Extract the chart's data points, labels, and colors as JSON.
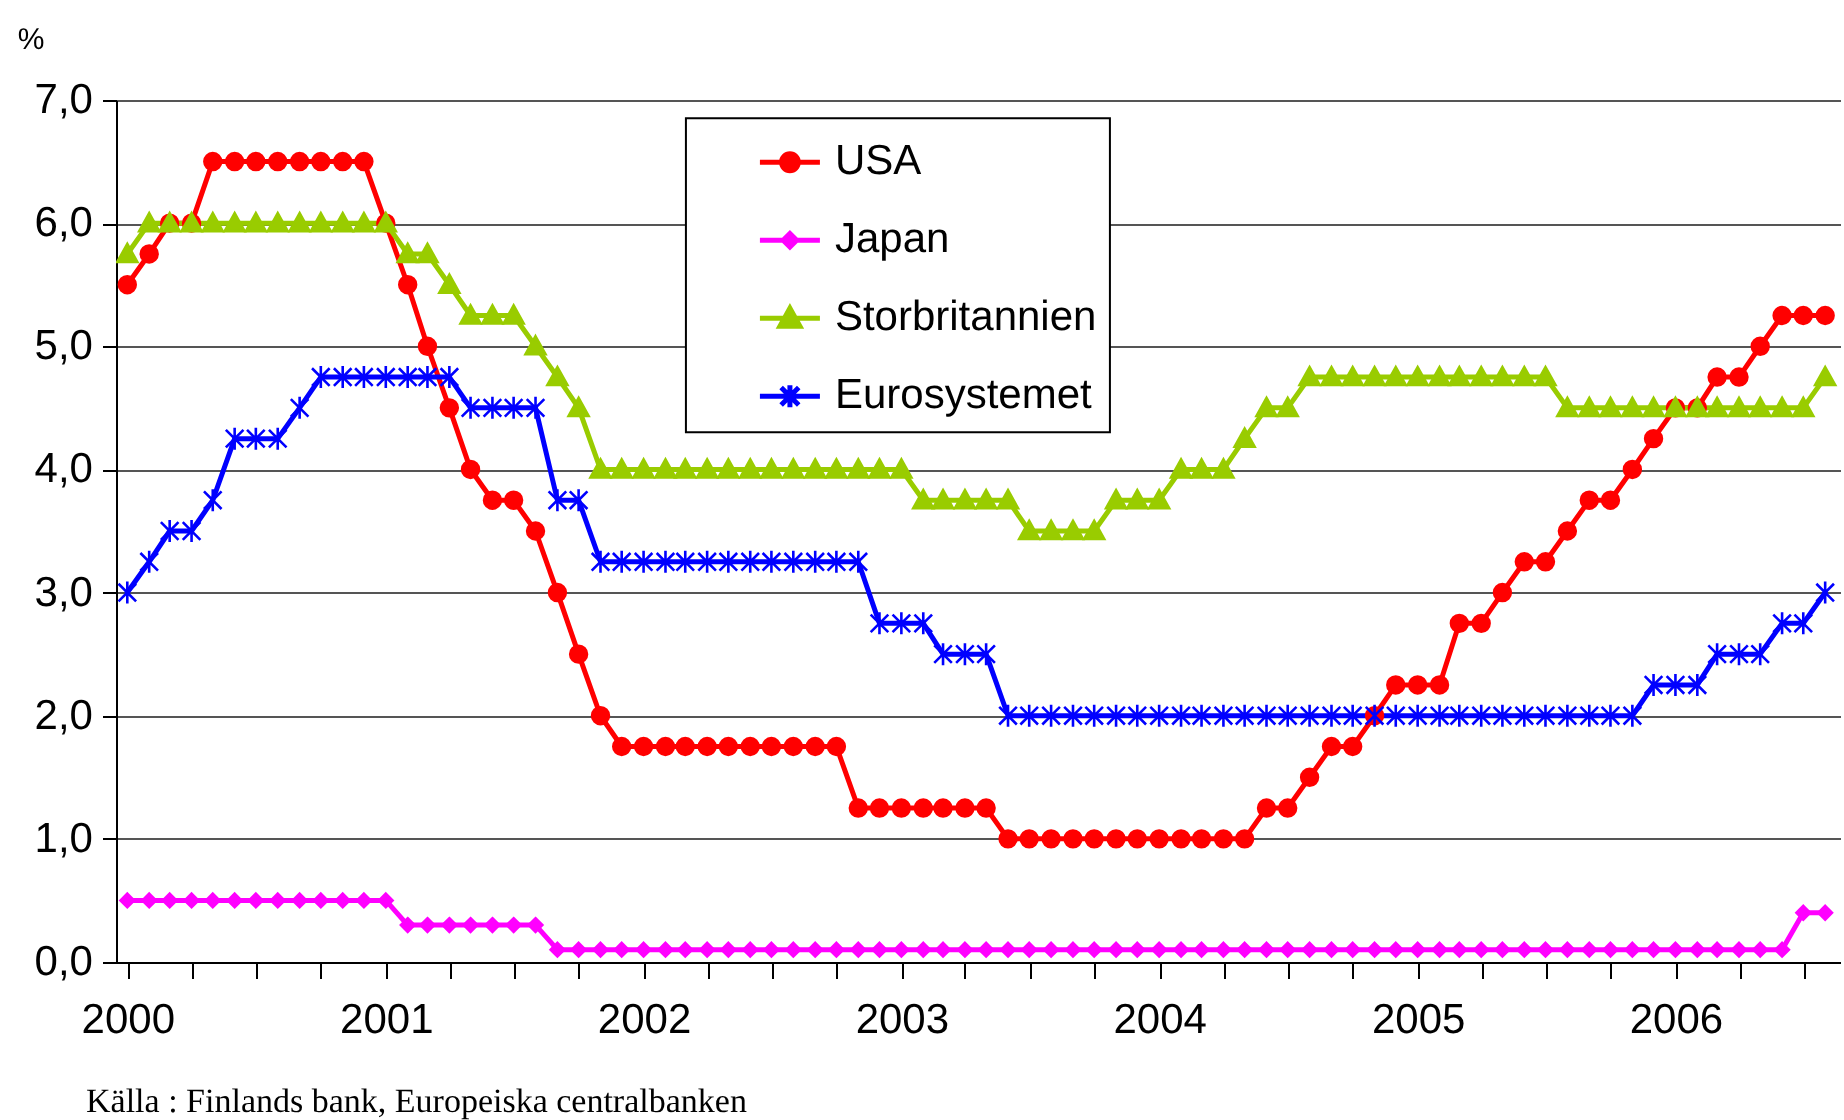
{
  "chart_data": {
    "type": "line",
    "x": [
      "2000-01",
      "2000-02",
      "2000-03",
      "2000-04",
      "2000-05",
      "2000-06",
      "2000-07",
      "2000-08",
      "2000-09",
      "2000-10",
      "2000-11",
      "2000-12",
      "2001-01",
      "2001-02",
      "2001-03",
      "2001-04",
      "2001-05",
      "2001-06",
      "2001-07",
      "2001-08",
      "2001-09",
      "2001-10",
      "2001-11",
      "2001-12",
      "2002-01",
      "2002-02",
      "2002-03",
      "2002-04",
      "2002-05",
      "2002-06",
      "2002-07",
      "2002-08",
      "2002-09",
      "2002-10",
      "2002-11",
      "2002-12",
      "2003-01",
      "2003-02",
      "2003-03",
      "2003-04",
      "2003-05",
      "2003-06",
      "2003-07",
      "2003-08",
      "2003-09",
      "2003-10",
      "2003-11",
      "2003-12",
      "2004-01",
      "2004-02",
      "2004-03",
      "2004-04",
      "2004-05",
      "2004-06",
      "2004-07",
      "2004-08",
      "2004-09",
      "2004-10",
      "2004-11",
      "2004-12",
      "2005-01",
      "2005-02",
      "2005-03",
      "2005-04",
      "2005-05",
      "2005-06",
      "2005-07",
      "2005-08",
      "2005-09",
      "2005-10",
      "2005-11",
      "2005-12",
      "2006-01",
      "2006-02",
      "2006-03",
      "2006-04",
      "2006-05",
      "2006-06",
      "2006-07",
      "2006-08"
    ],
    "xlim": [
      "1999-12-16",
      "2006-08-22"
    ],
    "xticks": [
      "2000",
      {
        "value": "2000-04",
        "label": null
      },
      {
        "value": "2000-07",
        "label": null
      },
      {
        "value": "2000-10",
        "label": null
      },
      "2001",
      {
        "value": "2001-04",
        "label": null
      },
      {
        "value": "2001-07",
        "label": null
      },
      {
        "value": "2001-10",
        "label": null
      },
      "2002",
      {
        "value": "2002-04",
        "label": null
      },
      {
        "value": "2002-07",
        "label": null
      },
      {
        "value": "2002-10",
        "label": null
      },
      "2003",
      {
        "value": "2003-04",
        "label": null
      },
      {
        "value": "2003-07",
        "label": null
      },
      {
        "value": "2003-10",
        "label": null
      },
      "2004",
      {
        "value": "2004-04",
        "label": null
      },
      {
        "value": "2004-07",
        "label": null
      },
      {
        "value": "2004-10",
        "label": null
      },
      "2005",
      {
        "value": "2005-04",
        "label": null
      },
      {
        "value": "2005-07",
        "label": null
      },
      {
        "value": "2005-10",
        "label": null
      },
      "2006",
      {
        "value": "2006-04",
        "label": null
      },
      {
        "value": "2006-07",
        "label": null
      }
    ],
    "ylabel": "%",
    "ylim": [
      0,
      7
    ],
    "yticks": [
      {
        "value": 0,
        "label": "0,0"
      },
      {
        "value": 1,
        "label": "1,0"
      },
      {
        "value": 2,
        "label": "2,0"
      },
      {
        "value": 3,
        "label": "3,0"
      },
      {
        "value": 4,
        "label": "4,0"
      },
      {
        "value": 5,
        "label": "5,0"
      },
      {
        "value": 6,
        "label": "6,0"
      },
      {
        "value": 7,
        "label": "7,0"
      }
    ],
    "grid": "y",
    "legend": "top",
    "line_style": "solid",
    "series": [
      {
        "name": "USA",
        "color": "#ff0000",
        "marker": "circle",
        "values": [
          5.5,
          5.75,
          6,
          6,
          6.5,
          6.5,
          6.5,
          6.5,
          6.5,
          6.5,
          6.5,
          6.5,
          6,
          5.5,
          5,
          4.5,
          4,
          3.75,
          3.75,
          3.5,
          3,
          2.5,
          2,
          1.75,
          1.75,
          1.75,
          1.75,
          1.75,
          1.75,
          1.75,
          1.75,
          1.75,
          1.75,
          1.75,
          1.25,
          1.25,
          1.25,
          1.25,
          1.25,
          1.25,
          1.25,
          1,
          1,
          1,
          1,
          1,
          1,
          1,
          1,
          1,
          1,
          1,
          1,
          1.25,
          1.25,
          1.5,
          1.75,
          1.75,
          2,
          2.25,
          2.25,
          2.25,
          2.75,
          2.75,
          3,
          3.25,
          3.25,
          3.5,
          3.75,
          3.75,
          4,
          4.25,
          4.5,
          4.5,
          4.75,
          4.75,
          5,
          5.25,
          5.25,
          5.25
        ]
      },
      {
        "name": "Japan",
        "color": "#ff00ff",
        "marker": "diamond",
        "values": [
          0.5,
          0.5,
          0.5,
          0.5,
          0.5,
          0.5,
          0.5,
          0.5,
          0.5,
          0.5,
          0.5,
          0.5,
          0.5,
          0.3,
          0.3,
          0.3,
          0.3,
          0.3,
          0.3,
          0.3,
          0.1,
          0.1,
          0.1,
          0.1,
          0.1,
          0.1,
          0.1,
          0.1,
          0.1,
          0.1,
          0.1,
          0.1,
          0.1,
          0.1,
          0.1,
          0.1,
          0.1,
          0.1,
          0.1,
          0.1,
          0.1,
          0.1,
          0.1,
          0.1,
          0.1,
          0.1,
          0.1,
          0.1,
          0.1,
          0.1,
          0.1,
          0.1,
          0.1,
          0.1,
          0.1,
          0.1,
          0.1,
          0.1,
          0.1,
          0.1,
          0.1,
          0.1,
          0.1,
          0.1,
          0.1,
          0.1,
          0.1,
          0.1,
          0.1,
          0.1,
          0.1,
          0.1,
          0.1,
          0.1,
          0.1,
          0.1,
          0.1,
          0.1,
          0.4,
          0.4
        ]
      },
      {
        "name": "Storbritannien",
        "color": "#99cc00",
        "marker": "triangle",
        "values": [
          5.75,
          6,
          6,
          6,
          6,
          6,
          6,
          6,
          6,
          6,
          6,
          6,
          6,
          5.75,
          5.75,
          5.5,
          5.25,
          5.25,
          5.25,
          5,
          4.75,
          4.5,
          4,
          4,
          4,
          4,
          4,
          4,
          4,
          4,
          4,
          4,
          4,
          4,
          4,
          4,
          4,
          3.75,
          3.75,
          3.75,
          3.75,
          3.75,
          3.5,
          3.5,
          3.5,
          3.5,
          3.75,
          3.75,
          3.75,
          4,
          4,
          4,
          4.25,
          4.5,
          4.5,
          4.75,
          4.75,
          4.75,
          4.75,
          4.75,
          4.75,
          4.75,
          4.75,
          4.75,
          4.75,
          4.75,
          4.75,
          4.5,
          4.5,
          4.5,
          4.5,
          4.5,
          4.5,
          4.5,
          4.5,
          4.5,
          4.5,
          4.5,
          4.5,
          4.75
        ]
      },
      {
        "name": "Eurosystemet",
        "color": "#0000ff",
        "marker": "cross",
        "values": [
          3,
          3.25,
          3.5,
          3.5,
          3.75,
          4.25,
          4.25,
          4.25,
          4.5,
          4.75,
          4.75,
          4.75,
          4.75,
          4.75,
          4.75,
          4.75,
          4.5,
          4.5,
          4.5,
          4.5,
          3.75,
          3.75,
          3.25,
          3.25,
          3.25,
          3.25,
          3.25,
          3.25,
          3.25,
          3.25,
          3.25,
          3.25,
          3.25,
          3.25,
          3.25,
          2.75,
          2.75,
          2.75,
          2.5,
          2.5,
          2.5,
          2,
          2,
          2,
          2,
          2,
          2,
          2,
          2,
          2,
          2,
          2,
          2,
          2,
          2,
          2,
          2,
          2,
          2,
          2,
          2,
          2,
          2,
          2,
          2,
          2,
          2,
          2,
          2,
          2,
          2,
          2.25,
          2.25,
          2.25,
          2.5,
          2.5,
          2.5,
          2.75,
          2.75,
          3
        ]
      }
    ],
    "annotations": [
      "Källa : Finlands bank, Europeiska centralbanken"
    ]
  }
}
